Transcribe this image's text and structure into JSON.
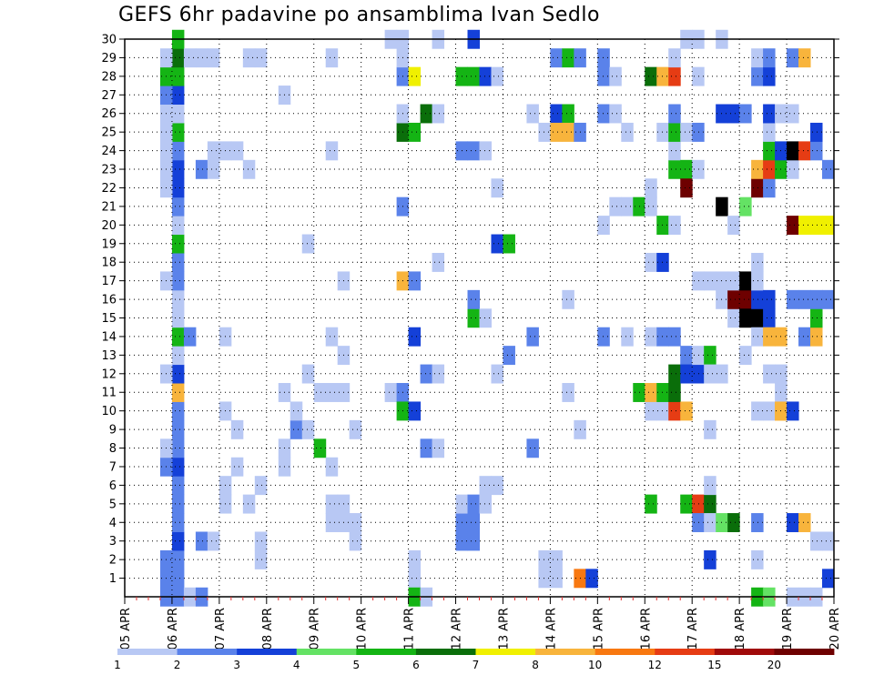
{
  "chart_data": {
    "type": "heatmap",
    "title": "GEFS 6hr padavine po ansamblima Ivan Sedlo",
    "xlabel": "",
    "ylabel": "",
    "x_ticks": [
      "05 APR",
      "06 APR",
      "07 APR",
      "08 APR",
      "09 APR",
      "10 APR",
      "11 APR",
      "12 APR",
      "13 APR",
      "14 APR",
      "15 APR",
      "16 APR",
      "17 APR",
      "18 APR",
      "19 APR",
      "20 APR"
    ],
    "xlim": [
      0,
      15
    ],
    "x_unit": "days after 05 APR 00Z",
    "x_step": 0.25,
    "ylim": [
      0,
      30
    ],
    "y_ticks": [
      1,
      2,
      3,
      4,
      5,
      6,
      7,
      8,
      9,
      10,
      11,
      12,
      13,
      14,
      15,
      16,
      17,
      18,
      19,
      20,
      21,
      22,
      23,
      24,
      25,
      26,
      27,
      28,
      29,
      30
    ],
    "grid": true,
    "legend": {
      "position": "bottom",
      "labels": [
        "1",
        "2",
        "3",
        "4",
        "5",
        "6",
        "7",
        "8",
        "10",
        "12",
        "15",
        "20"
      ],
      "colors": [
        "#b8c8f4",
        "#5a82ea",
        "#1440d8",
        "#64e264",
        "#14b414",
        "#0a6e0a",
        "#f0f000",
        "#f8b43c",
        "#f87810",
        "#e63c14",
        "#a00a0a",
        "#6e0000"
      ]
    },
    "cells": [
      [
        1,
        0,
        2
      ],
      [
        1,
        1,
        2
      ],
      [
        1,
        2,
        2
      ],
      [
        1,
        3,
        3
      ],
      [
        1,
        4,
        2
      ],
      [
        1,
        5,
        2
      ],
      [
        1,
        6,
        2
      ],
      [
        1,
        7,
        3
      ],
      [
        1,
        8,
        2
      ],
      [
        1,
        9,
        2
      ],
      [
        1,
        10,
        2
      ],
      [
        1,
        11,
        8
      ],
      [
        1,
        12,
        3
      ],
      [
        1,
        13,
        1
      ],
      [
        1,
        14,
        5
      ],
      [
        1,
        15,
        1
      ],
      [
        1,
        16,
        1
      ],
      [
        1,
        17,
        2
      ],
      [
        1,
        18,
        2
      ],
      [
        1,
        19,
        5
      ],
      [
        1,
        20,
        1
      ],
      [
        1,
        21,
        2
      ],
      [
        1,
        22,
        3
      ],
      [
        1,
        23,
        3
      ],
      [
        1,
        24,
        2
      ],
      [
        1,
        25,
        5
      ],
      [
        1,
        26,
        1
      ],
      [
        1,
        27,
        3
      ],
      [
        1,
        28,
        5
      ],
      [
        1,
        29,
        6
      ],
      [
        1,
        30,
        5
      ],
      [
        0.75,
        0,
        2
      ],
      [
        0.75,
        1,
        2
      ],
      [
        0.75,
        2,
        2
      ],
      [
        0.75,
        7,
        2
      ],
      [
        0.75,
        8,
        1
      ],
      [
        0.75,
        12,
        1
      ],
      [
        0.75,
        17,
        1
      ],
      [
        0.75,
        22,
        1
      ],
      [
        0.75,
        23,
        1
      ],
      [
        0.75,
        24,
        1
      ],
      [
        0.75,
        25,
        1
      ],
      [
        0.75,
        26,
        1
      ],
      [
        0.75,
        27,
        2
      ],
      [
        0.75,
        28,
        5
      ],
      [
        0.75,
        29,
        1
      ],
      [
        1.25,
        0,
        1
      ],
      [
        1.25,
        14,
        2
      ],
      [
        1.25,
        29,
        1
      ],
      [
        1.5,
        0,
        2
      ],
      [
        1.5,
        3,
        2
      ],
      [
        1.5,
        23,
        2
      ],
      [
        1.5,
        29,
        1
      ],
      [
        1.75,
        3,
        1
      ],
      [
        1.75,
        23,
        1
      ],
      [
        1.75,
        24,
        1
      ],
      [
        1.75,
        29,
        1
      ],
      [
        2.0,
        5,
        1
      ],
      [
        2.0,
        6,
        1
      ],
      [
        2.0,
        10,
        1
      ],
      [
        2.0,
        14,
        1
      ],
      [
        2.0,
        24,
        1
      ],
      [
        2.25,
        7,
        1
      ],
      [
        2.25,
        9,
        1
      ],
      [
        2.25,
        24,
        1
      ],
      [
        2.5,
        5,
        1
      ],
      [
        2.5,
        23,
        1
      ],
      [
        2.5,
        29,
        1
      ],
      [
        2.75,
        2,
        1
      ],
      [
        2.75,
        3,
        1
      ],
      [
        2.75,
        6,
        1
      ],
      [
        2.75,
        29,
        1
      ],
      [
        3.25,
        7,
        1
      ],
      [
        3.25,
        8,
        1
      ],
      [
        3.25,
        11,
        1
      ],
      [
        3.25,
        27,
        1
      ],
      [
        3.5,
        9,
        2
      ],
      [
        3.5,
        10,
        1
      ],
      [
        3.75,
        9,
        1
      ],
      [
        3.75,
        12,
        1
      ],
      [
        3.75,
        19,
        1
      ],
      [
        4.0,
        11,
        1
      ],
      [
        4.0,
        8,
        5
      ],
      [
        4.25,
        7,
        1
      ],
      [
        4.25,
        4,
        1
      ],
      [
        4.25,
        5,
        1
      ],
      [
        4.25,
        11,
        1
      ],
      [
        4.25,
        14,
        1
      ],
      [
        4.25,
        24,
        1
      ],
      [
        4.25,
        29,
        1
      ],
      [
        4.5,
        4,
        1
      ],
      [
        4.5,
        5,
        1
      ],
      [
        4.5,
        11,
        1
      ],
      [
        4.5,
        13,
        1
      ],
      [
        4.5,
        17,
        1
      ],
      [
        4.75,
        4,
        1
      ],
      [
        4.75,
        3,
        1
      ],
      [
        4.75,
        9,
        1
      ],
      [
        5.5,
        11,
        1
      ],
      [
        5.5,
        30,
        1
      ],
      [
        5.75,
        11,
        2
      ],
      [
        5.75,
        10,
        5
      ],
      [
        5.75,
        17,
        8
      ],
      [
        5.75,
        21,
        2
      ],
      [
        5.75,
        25,
        6
      ],
      [
        5.75,
        26,
        1
      ],
      [
        5.75,
        30,
        1
      ],
      [
        5.75,
        28,
        2
      ],
      [
        5.75,
        29,
        1
      ],
      [
        6.0,
        10,
        3
      ],
      [
        6.0,
        14,
        3
      ],
      [
        6.0,
        17,
        2
      ],
      [
        6.0,
        25,
        5
      ],
      [
        6.0,
        28,
        7
      ],
      [
        6.0,
        1,
        1
      ],
      [
        6.0,
        2,
        1
      ],
      [
        6.0,
        0,
        5
      ],
      [
        6.25,
        8,
        2
      ],
      [
        6.25,
        12,
        2
      ],
      [
        6.25,
        26,
        6
      ],
      [
        6.25,
        0,
        1
      ],
      [
        6.5,
        8,
        1
      ],
      [
        6.5,
        12,
        1
      ],
      [
        6.5,
        18,
        1
      ],
      [
        6.5,
        26,
        1
      ],
      [
        6.5,
        30,
        1
      ],
      [
        7.0,
        4,
        2
      ],
      [
        7.0,
        3,
        2
      ],
      [
        7.0,
        5,
        1
      ],
      [
        7.0,
        24,
        2
      ],
      [
        7.0,
        28,
        5
      ],
      [
        7.25,
        4,
        2
      ],
      [
        7.25,
        3,
        2
      ],
      [
        7.25,
        5,
        2
      ],
      [
        7.25,
        15,
        5
      ],
      [
        7.25,
        16,
        2
      ],
      [
        7.25,
        24,
        2
      ],
      [
        7.25,
        28,
        5
      ],
      [
        7.25,
        30,
        3
      ],
      [
        7.5,
        5,
        1
      ],
      [
        7.5,
        6,
        1
      ],
      [
        7.5,
        15,
        1
      ],
      [
        7.5,
        24,
        1
      ],
      [
        7.5,
        28,
        3
      ],
      [
        7.75,
        6,
        1
      ],
      [
        7.75,
        12,
        1
      ],
      [
        7.75,
        19,
        3
      ],
      [
        7.75,
        22,
        1
      ],
      [
        7.75,
        28,
        1
      ],
      [
        8.0,
        19,
        5
      ],
      [
        8.0,
        13,
        2
      ],
      [
        8.5,
        8,
        2
      ],
      [
        8.5,
        14,
        2
      ],
      [
        8.5,
        26,
        1
      ],
      [
        8.75,
        1,
        1
      ],
      [
        8.75,
        2,
        1
      ],
      [
        8.75,
        25,
        1
      ],
      [
        9.0,
        1,
        1
      ],
      [
        9.0,
        2,
        1
      ],
      [
        9.0,
        26,
        3
      ],
      [
        9.0,
        25,
        8
      ],
      [
        9.0,
        29,
        2
      ],
      [
        9.25,
        11,
        1
      ],
      [
        9.25,
        16,
        1
      ],
      [
        9.25,
        26,
        5
      ],
      [
        9.25,
        25,
        8
      ],
      [
        9.25,
        29,
        5
      ],
      [
        9.5,
        1,
        9
      ],
      [
        9.5,
        9,
        1
      ],
      [
        9.5,
        25,
        2
      ],
      [
        9.5,
        29,
        2
      ],
      [
        9.75,
        1,
        3
      ],
      [
        10.0,
        20,
        1
      ],
      [
        10.0,
        26,
        2
      ],
      [
        10.0,
        29,
        2
      ],
      [
        10.0,
        28,
        2
      ],
      [
        10.0,
        14,
        2
      ],
      [
        10.25,
        21,
        1
      ],
      [
        10.25,
        26,
        1
      ],
      [
        10.25,
        28,
        1
      ],
      [
        10.5,
        21,
        1
      ],
      [
        10.5,
        25,
        1
      ],
      [
        10.5,
        14,
        1
      ],
      [
        10.75,
        21,
        5
      ],
      [
        10.75,
        11,
        5
      ],
      [
        11.0,
        14,
        1
      ],
      [
        11.0,
        10,
        1
      ],
      [
        11.0,
        22,
        1
      ],
      [
        11.0,
        21,
        1
      ],
      [
        11.0,
        18,
        1
      ],
      [
        11.0,
        11,
        8
      ],
      [
        11.0,
        5,
        5
      ],
      [
        11.0,
        28,
        6
      ],
      [
        11.25,
        10,
        1
      ],
      [
        11.25,
        11,
        5
      ],
      [
        11.25,
        14,
        2
      ],
      [
        11.25,
        18,
        3
      ],
      [
        11.25,
        25,
        1
      ],
      [
        11.25,
        28,
        8
      ],
      [
        11.25,
        20,
        5
      ],
      [
        11.5,
        10,
        10
      ],
      [
        11.5,
        11,
        6
      ],
      [
        11.5,
        12,
        6
      ],
      [
        11.5,
        14,
        2
      ],
      [
        11.5,
        20,
        1
      ],
      [
        11.5,
        23,
        5
      ],
      [
        11.5,
        24,
        1
      ],
      [
        11.5,
        25,
        5
      ],
      [
        11.5,
        26,
        2
      ],
      [
        11.5,
        28,
        10
      ],
      [
        11.5,
        29,
        1
      ],
      [
        11.75,
        10,
        8
      ],
      [
        11.75,
        5,
        5
      ],
      [
        11.75,
        23,
        5
      ],
      [
        11.75,
        25,
        1
      ],
      [
        11.75,
        22,
        12
      ],
      [
        11.75,
        13,
        2
      ],
      [
        11.75,
        12,
        3
      ],
      [
        11.75,
        30,
        1
      ],
      [
        12.0,
        5,
        10
      ],
      [
        12.0,
        12,
        3
      ],
      [
        12.0,
        13,
        1
      ],
      [
        12.0,
        17,
        1
      ],
      [
        12.0,
        23,
        1
      ],
      [
        12.0,
        25,
        2
      ],
      [
        12.0,
        28,
        1
      ],
      [
        12.0,
        30,
        1
      ],
      [
        12.0,
        4,
        2
      ],
      [
        12.25,
        5,
        6
      ],
      [
        12.25,
        13,
        5
      ],
      [
        12.25,
        12,
        1
      ],
      [
        12.25,
        17,
        1
      ],
      [
        12.25,
        4,
        1
      ],
      [
        12.25,
        6,
        1
      ],
      [
        12.25,
        9,
        1
      ],
      [
        12.25,
        2,
        3
      ],
      [
        12.5,
        4,
        4
      ],
      [
        12.5,
        12,
        1
      ],
      [
        12.5,
        16,
        1
      ],
      [
        12.5,
        17,
        1
      ],
      [
        12.5,
        21,
        15
      ],
      [
        12.5,
        26,
        3
      ],
      [
        12.5,
        30,
        1
      ],
      [
        12.75,
        4,
        6
      ],
      [
        12.75,
        15,
        1
      ],
      [
        12.75,
        16,
        12
      ],
      [
        12.75,
        17,
        1
      ],
      [
        12.75,
        20,
        1
      ],
      [
        12.75,
        26,
        3
      ],
      [
        13.0,
        16,
        12
      ],
      [
        13.0,
        15,
        20
      ],
      [
        13.0,
        17,
        15
      ],
      [
        13.0,
        21,
        4
      ],
      [
        13.0,
        26,
        2
      ],
      [
        13.0,
        13,
        1
      ],
      [
        13.25,
        15,
        20
      ],
      [
        13.25,
        16,
        3
      ],
      [
        13.25,
        14,
        1
      ],
      [
        13.25,
        10,
        1
      ],
      [
        13.25,
        2,
        1
      ],
      [
        13.25,
        4,
        2
      ],
      [
        13.25,
        17,
        1
      ],
      [
        13.25,
        18,
        1
      ],
      [
        13.25,
        22,
        12
      ],
      [
        13.25,
        23,
        8
      ],
      [
        13.25,
        28,
        2
      ],
      [
        13.25,
        29,
        1
      ],
      [
        13.25,
        0,
        5
      ],
      [
        13.5,
        15,
        3
      ],
      [
        13.5,
        16,
        3
      ],
      [
        13.5,
        14,
        8
      ],
      [
        13.5,
        10,
        1
      ],
      [
        13.5,
        12,
        1
      ],
      [
        13.5,
        22,
        2
      ],
      [
        13.5,
        23,
        10
      ],
      [
        13.5,
        24,
        5
      ],
      [
        13.5,
        25,
        1
      ],
      [
        13.5,
        26,
        3
      ],
      [
        13.5,
        28,
        3
      ],
      [
        13.5,
        29,
        2
      ],
      [
        13.5,
        0,
        4
      ],
      [
        13.75,
        14,
        8
      ],
      [
        13.75,
        10,
        8
      ],
      [
        13.75,
        23,
        5
      ],
      [
        13.75,
        24,
        3
      ],
      [
        13.75,
        26,
        1
      ],
      [
        13.75,
        12,
        1
      ],
      [
        13.75,
        11,
        1
      ],
      [
        13.75,
        10,
        8
      ],
      [
        14.0,
        10,
        3
      ],
      [
        14.0,
        16,
        2
      ],
      [
        14.0,
        4,
        3
      ],
      [
        14.0,
        20,
        12
      ],
      [
        14.0,
        23,
        1
      ],
      [
        14.0,
        24,
        20
      ],
      [
        14.0,
        26,
        1
      ],
      [
        14.0,
        29,
        2
      ],
      [
        14.0,
        0,
        1
      ],
      [
        14.25,
        4,
        8
      ],
      [
        14.25,
        14,
        2
      ],
      [
        14.25,
        16,
        2
      ],
      [
        14.25,
        20,
        7
      ],
      [
        14.25,
        24,
        10
      ],
      [
        14.25,
        29,
        8
      ],
      [
        14.25,
        0,
        1
      ],
      [
        14.5,
        3,
        1
      ],
      [
        14.5,
        14,
        8
      ],
      [
        14.5,
        15,
        5
      ],
      [
        14.5,
        16,
        2
      ],
      [
        14.5,
        20,
        7
      ],
      [
        14.5,
        24,
        2
      ],
      [
        14.5,
        25,
        3
      ],
      [
        14.5,
        0,
        1
      ],
      [
        14.75,
        3,
        1
      ],
      [
        14.75,
        16,
        2
      ],
      [
        14.75,
        20,
        7
      ],
      [
        14.75,
        23,
        2
      ],
      [
        14.75,
        1,
        3
      ]
    ]
  }
}
